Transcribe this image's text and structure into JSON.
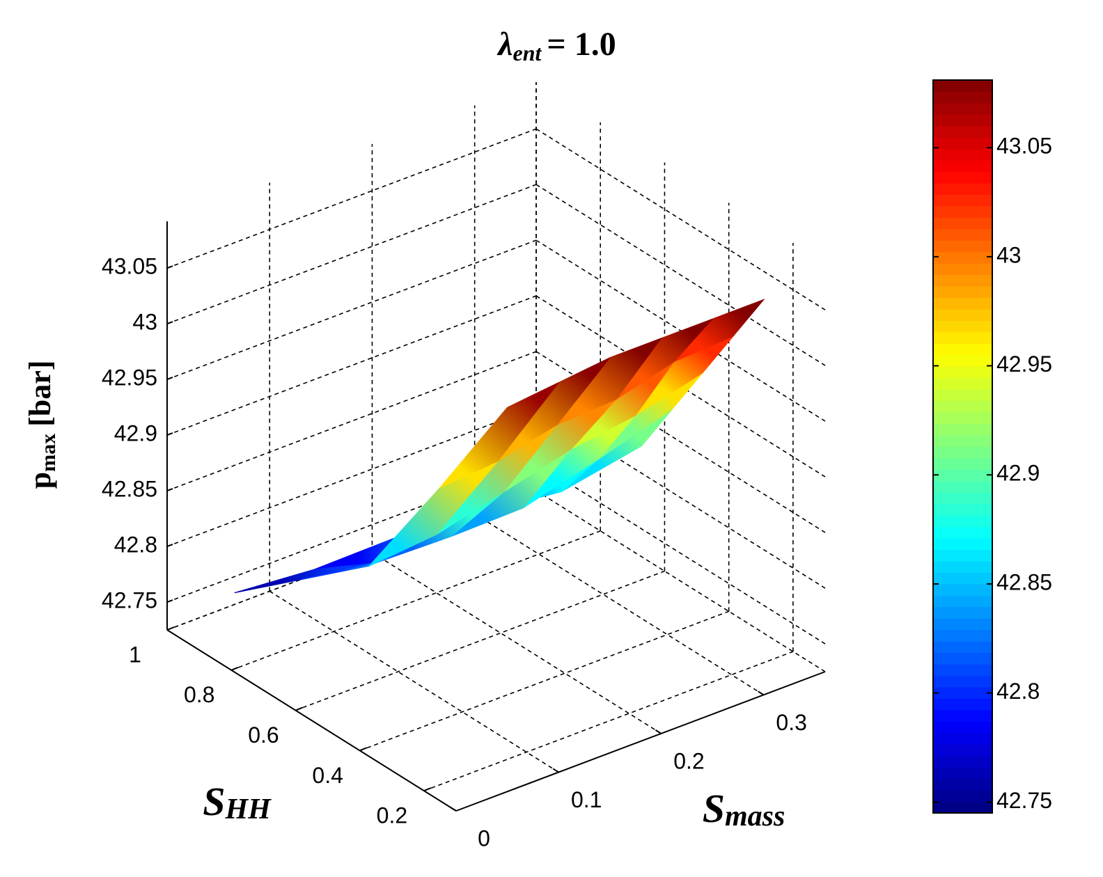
{
  "chart_data": {
    "type": "surface",
    "title": {
      "main": "λ",
      "sub": "ent",
      "rest": "= 1.0"
    },
    "zlabel": {
      "main": "p",
      "sub": "max",
      "rest": "[bar]"
    },
    "ylabel": {
      "main": "S",
      "sub": "HH"
    },
    "xlabel": {
      "main": "S",
      "sub": "mass"
    },
    "x": [
      0.05,
      0.1,
      0.15,
      0.2,
      0.25,
      0.3
    ],
    "y": [
      [
        0.1,
        0.31,
        0.53,
        0.74,
        0.95
      ],
      [
        0.1,
        0.29,
        0.48,
        0.67,
        0.86
      ],
      [
        0.1,
        0.265,
        0.43,
        0.595,
        0.76
      ],
      [
        0.1,
        0.24,
        0.38,
        0.53,
        0.67
      ],
      [
        0.1,
        0.22,
        0.34,
        0.455,
        0.57
      ],
      [
        0.1,
        0.195,
        0.29,
        0.385,
        0.48
      ]
    ],
    "z": [
      [
        43.07,
        42.96,
        42.85,
        42.8,
        42.75
      ],
      [
        43.075,
        42.97,
        42.87,
        42.81,
        42.77
      ],
      [
        43.08,
        42.99,
        42.9,
        42.83,
        42.8
      ],
      [
        43.08,
        43.0,
        42.93,
        42.85,
        42.82
      ],
      [
        43.08,
        43.02,
        42.95,
        42.89,
        42.84
      ],
      [
        43.08,
        43.03,
        42.98,
        42.93,
        42.88
      ]
    ],
    "xlim": [
      0,
      0.36
    ],
    "xticks": [
      0,
      0.1,
      0.2,
      0.3
    ],
    "ylim": [
      0.1,
      1
    ],
    "yticks": [
      0.2,
      0.4,
      0.6,
      0.8,
      1
    ],
    "zlim": [
      42.725,
      43.092
    ],
    "zticks": [
      42.75,
      42.8,
      42.85,
      42.9,
      42.95,
      43,
      43.05
    ],
    "grid": true,
    "colorbar": {
      "colormap": "jet",
      "clim": [
        42.745,
        43.081
      ],
      "ticks": [
        42.75,
        42.8,
        42.85,
        42.9,
        42.95,
        43,
        43.05
      ]
    }
  }
}
